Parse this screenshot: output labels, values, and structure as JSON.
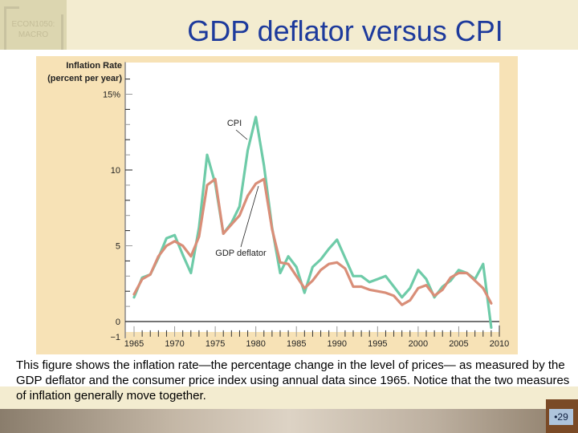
{
  "slide": {
    "title": "GDP deflator versus CPI",
    "logo_line1": "ECON1050:",
    "logo_line2": "MACRO",
    "caption": "This figure shows the inflation rate—the percentage change in the level of prices— as measured by the GDP deflator and the consumer price index using annual data since 1965. Notice that the two measures of inflation generally move together.",
    "page_number": "•29"
  },
  "colors": {
    "cpi": "#6ecba8",
    "gdp_deflator": "#d98e78",
    "panel": "#f7e2b6",
    "title": "#1d3a9c"
  },
  "chart_data": {
    "type": "line",
    "title": "",
    "ylabel_line1": "Inflation Rate",
    "ylabel_line2": "(percent per year)",
    "xlabel": "",
    "ylim": [
      -1,
      15
    ],
    "xlim": [
      1964.5,
      2010
    ],
    "y_ticks": [
      {
        "value": 15,
        "label": "15%"
      },
      {
        "value": 10,
        "label": "10"
      },
      {
        "value": 5,
        "label": "5"
      },
      {
        "value": 0,
        "label": "0"
      },
      {
        "value": -1,
        "label": "−1"
      }
    ],
    "x_ticks": [
      {
        "value": 1965,
        "label": "1965"
      },
      {
        "value": 1970,
        "label": "1970"
      },
      {
        "value": 1975,
        "label": "1975"
      },
      {
        "value": 1980,
        "label": "1980"
      },
      {
        "value": 1985,
        "label": "1985"
      },
      {
        "value": 1990,
        "label": "1990"
      },
      {
        "value": 1995,
        "label": "1995"
      },
      {
        "value": 2000,
        "label": "2000"
      },
      {
        "value": 2005,
        "label": "2005"
      },
      {
        "value": 2010,
        "label": "2010"
      }
    ],
    "x": [
      1965,
      1966,
      1967,
      1968,
      1969,
      1970,
      1971,
      1972,
      1973,
      1974,
      1975,
      1976,
      1977,
      1978,
      1979,
      1980,
      1981,
      1982,
      1983,
      1984,
      1985,
      1986,
      1987,
      1988,
      1989,
      1990,
      1991,
      1992,
      1993,
      1994,
      1995,
      1996,
      1997,
      1998,
      1999,
      2000,
      2001,
      2002,
      2003,
      2004,
      2005,
      2006,
      2007,
      2008,
      2009
    ],
    "series": [
      {
        "name": "CPI",
        "annotation": "CPI",
        "values": [
          1.6,
          2.9,
          3.1,
          4.2,
          5.5,
          5.7,
          4.4,
          3.2,
          6.2,
          11.0,
          9.1,
          5.8,
          6.5,
          7.6,
          11.3,
          13.5,
          10.3,
          6.2,
          3.2,
          4.3,
          3.6,
          1.9,
          3.6,
          4.1,
          4.8,
          5.4,
          4.2,
          3.0,
          3.0,
          2.6,
          2.8,
          3.0,
          2.3,
          1.6,
          2.2,
          3.4,
          2.8,
          1.6,
          2.3,
          2.7,
          3.4,
          3.2,
          2.8,
          3.8,
          -0.4
        ]
      },
      {
        "name": "GDP deflator",
        "annotation": "GDP deflator",
        "values": [
          1.8,
          2.8,
          3.1,
          4.3,
          5.0,
          5.3,
          5.0,
          4.3,
          5.6,
          9.0,
          9.4,
          5.8,
          6.4,
          7.0,
          8.3,
          9.1,
          9.4,
          6.1,
          3.9,
          3.8,
          3.0,
          2.2,
          2.7,
          3.4,
          3.8,
          3.9,
          3.5,
          2.3,
          2.3,
          2.1,
          2.0,
          1.9,
          1.7,
          1.1,
          1.4,
          2.2,
          2.4,
          1.7,
          2.1,
          2.9,
          3.2,
          3.2,
          2.7,
          2.2,
          1.2
        ]
      }
    ],
    "grid": false,
    "legend": "inline-annotations"
  }
}
